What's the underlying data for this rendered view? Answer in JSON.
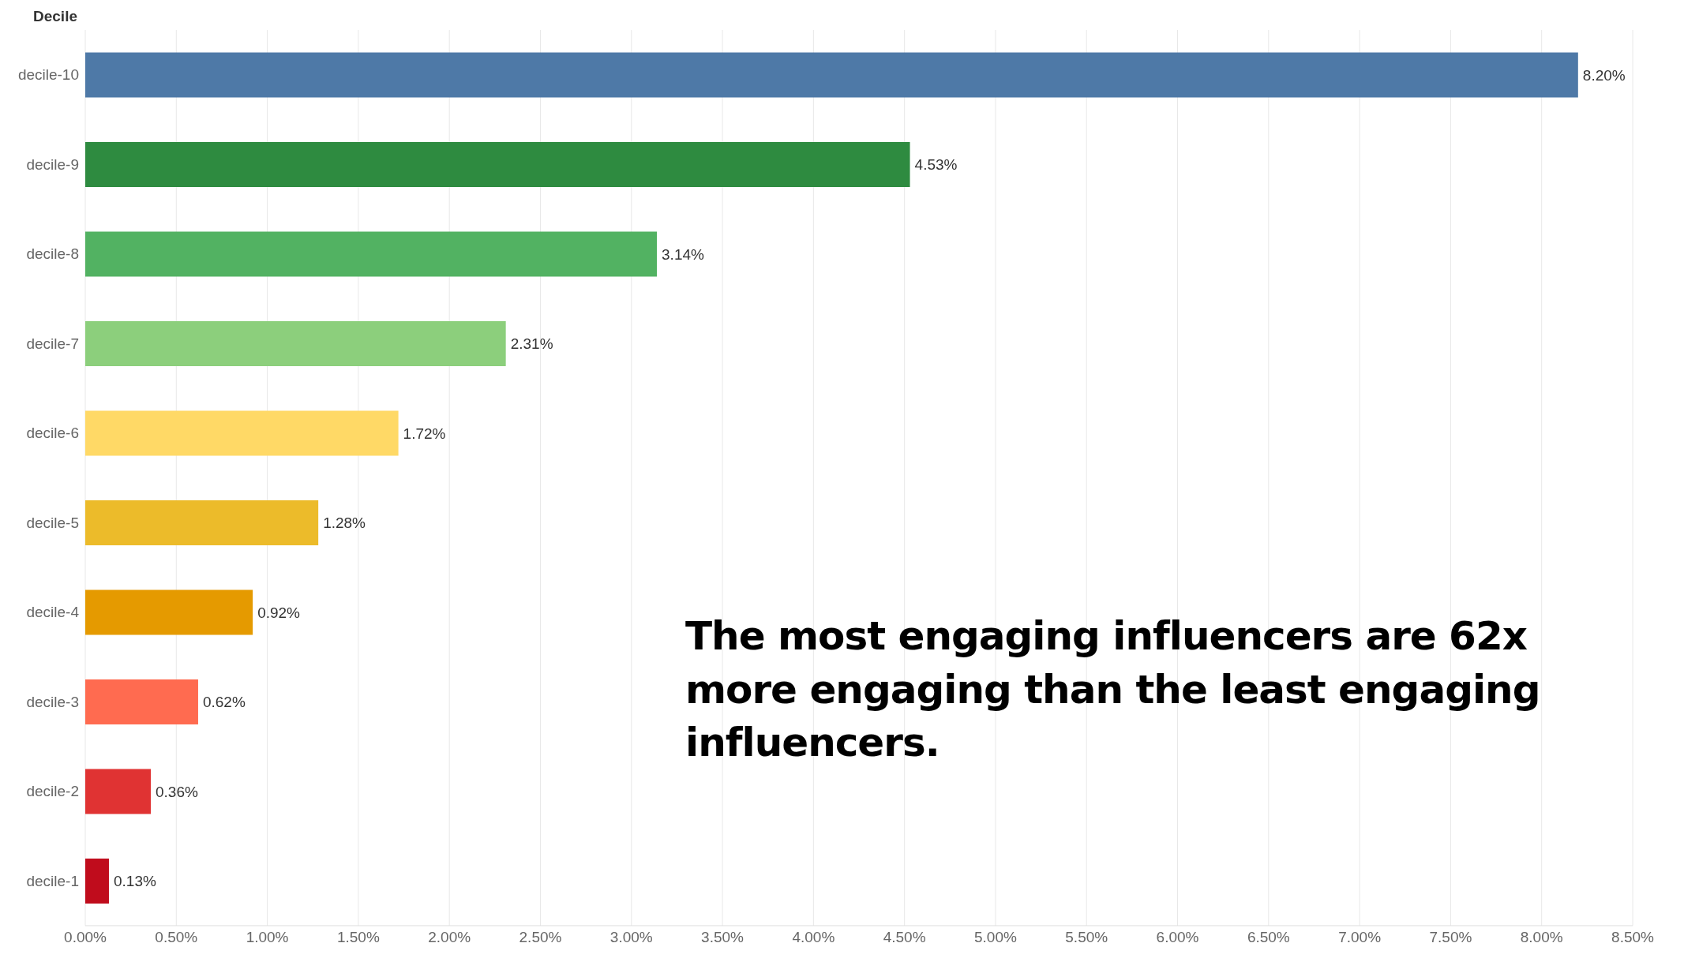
{
  "chart_data": {
    "type": "bar",
    "orientation": "horizontal",
    "ylabel": "Decile",
    "categories": [
      "decile-10",
      "decile-9",
      "decile-8",
      "decile-7",
      "decile-6",
      "decile-5",
      "decile-4",
      "decile-3",
      "decile-2",
      "decile-1"
    ],
    "values": [
      8.2,
      4.53,
      3.14,
      2.31,
      1.72,
      1.28,
      0.92,
      0.62,
      0.36,
      0.13
    ],
    "value_labels": [
      "8.20%",
      "4.53%",
      "3.14%",
      "2.31%",
      "1.72%",
      "1.28%",
      "0.92%",
      "0.62%",
      "0.36%",
      "0.13%"
    ],
    "colors": [
      "#4e79a7",
      "#2e8b40",
      "#52b262",
      "#8ccf7c",
      "#ffd966",
      "#ecbb2a",
      "#e59a00",
      "#ff6b50",
      "#e03333",
      "#c00c1c"
    ],
    "xlim": [
      0,
      8.5
    ],
    "xticks": [
      {
        "value": 0,
        "label": "0.00%"
      },
      {
        "value": 0.5,
        "label": "0.50%"
      },
      {
        "value": 1,
        "label": "1.00%"
      },
      {
        "value": 1.5,
        "label": "1.50%"
      },
      {
        "value": 2,
        "label": "2.00%"
      },
      {
        "value": 2.5,
        "label": "2.50%"
      },
      {
        "value": 3,
        "label": "3.00%"
      },
      {
        "value": 3.5,
        "label": "3.50%"
      },
      {
        "value": 4,
        "label": "4.00%"
      },
      {
        "value": 4.5,
        "label": "4.50%"
      },
      {
        "value": 5,
        "label": "5.00%"
      },
      {
        "value": 5.5,
        "label": "5.50%"
      },
      {
        "value": 6,
        "label": "6.00%"
      },
      {
        "value": 6.5,
        "label": "6.50%"
      },
      {
        "value": 7,
        "label": "7.00%"
      },
      {
        "value": 7.5,
        "label": "7.50%"
      },
      {
        "value": 8,
        "label": "8.00%"
      },
      {
        "value": 8.5,
        "label": "8.50%"
      }
    ],
    "grid": "x",
    "legend": false,
    "annotations": [
      "The most engaging influencers are 62x more engaging than the least engaging influencers."
    ]
  }
}
